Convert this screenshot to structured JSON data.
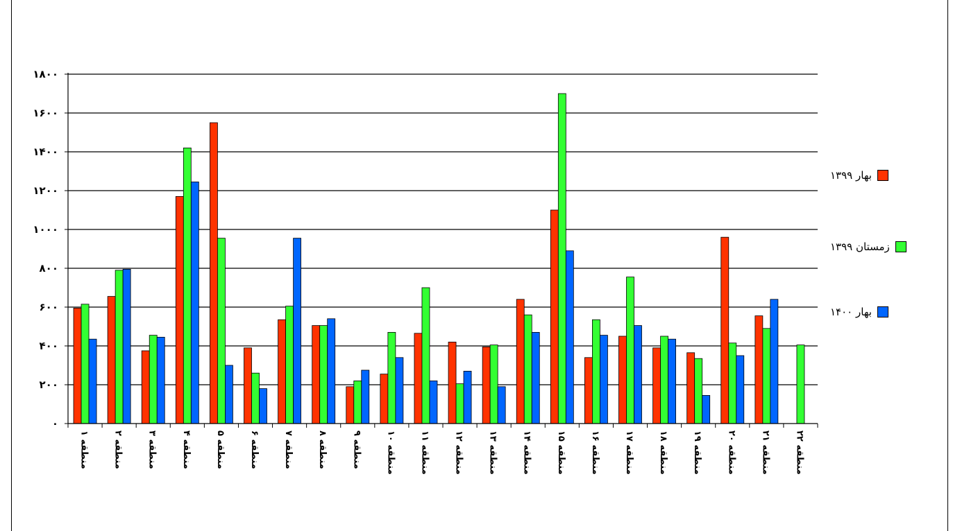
{
  "chart_data": {
    "type": "bar",
    "categories": [
      "منطقه ۱",
      "منطقه ۲",
      "منطقه ۳",
      "منطقه ۴",
      "منطقه ۵",
      "منطقه ۶",
      "منطقه ۷",
      "منطقه ۸",
      "منطقه ۹",
      "منطقه ۱۰",
      "منطقه ۱۱",
      "منطقه ۱۲",
      "منطقه ۱۳",
      "منطقه ۱۴",
      "منطقه ۱۵",
      "منطقه ۱۶",
      "منطقه ۱۷",
      "منطقه ۱۸",
      "منطقه ۱۹",
      "منطقه ۲۰",
      "منطقه ۲۱",
      "منطقه ۲۲"
    ],
    "series": [
      {
        "name": "بهار ۱۳۹۹",
        "color": "#ff3300",
        "values": [
          595,
          655,
          375,
          1170,
          1550,
          390,
          535,
          505,
          190,
          255,
          465,
          420,
          395,
          640,
          1100,
          340,
          450,
          390,
          365,
          960,
          555,
          0
        ]
      },
      {
        "name": "زمستان ۱۳۹۹",
        "color": "#33ff33",
        "values": [
          615,
          790,
          455,
          1420,
          955,
          260,
          605,
          505,
          220,
          470,
          700,
          205,
          405,
          560,
          1700,
          535,
          755,
          450,
          335,
          415,
          490,
          405
        ]
      },
      {
        "name": "بهار ۱۴۰۰",
        "color": "#0066ff",
        "values": [
          435,
          795,
          445,
          1245,
          300,
          180,
          955,
          540,
          275,
          340,
          220,
          270,
          190,
          470,
          890,
          455,
          505,
          435,
          145,
          350,
          640,
          0
        ]
      }
    ],
    "yticks": [
      "۰",
      "۲۰۰",
      "۴۰۰",
      "۶۰۰",
      "۸۰۰",
      "۱۰۰۰",
      "۱۲۰۰",
      "۱۴۰۰",
      "۱۶۰۰",
      "۱۸۰۰"
    ],
    "ylim": [
      0,
      1800
    ],
    "grid": true,
    "legend_position": "right",
    "title": "",
    "xlabel": "",
    "ylabel": ""
  }
}
